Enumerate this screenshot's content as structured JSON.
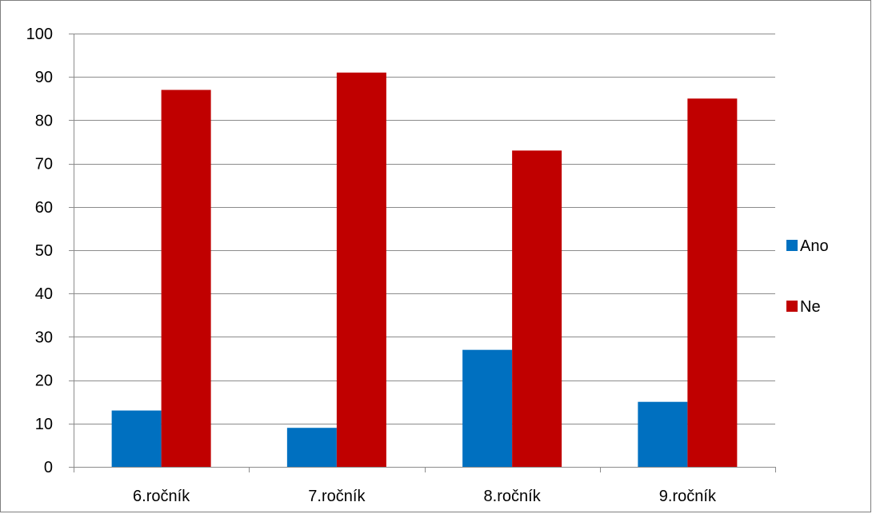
{
  "chart_data": {
    "type": "bar",
    "categories": [
      "6.ročník",
      "7.ročník",
      "8.ročník",
      "9.ročník"
    ],
    "series": [
      {
        "name": "Ano",
        "values": [
          13,
          9,
          27,
          15
        ],
        "color": "#0070c0"
      },
      {
        "name": "Ne",
        "values": [
          87,
          91,
          73,
          85
        ],
        "color": "#c00000"
      }
    ],
    "ylim": [
      0,
      100
    ],
    "yticks": [
      0,
      10,
      20,
      30,
      40,
      50,
      60,
      70,
      80,
      90,
      100
    ],
    "grid": true,
    "legend_position": "right",
    "title": "",
    "xlabel": "",
    "ylabel": ""
  }
}
